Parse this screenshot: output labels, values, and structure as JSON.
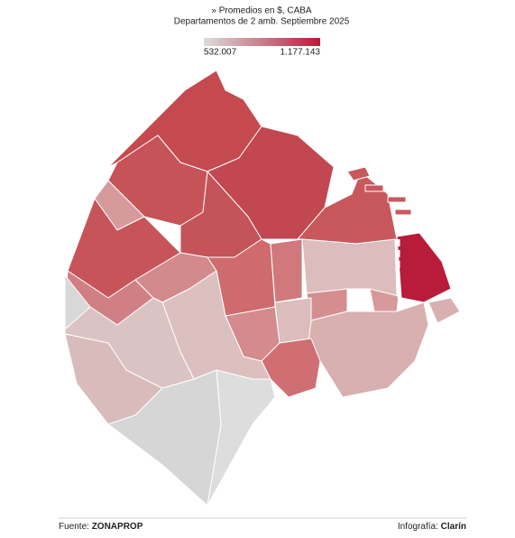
{
  "header": {
    "title": "» Promedios en $, CABA",
    "subtitle": "Departamentos de 2 amb. Septiembre 2025"
  },
  "legend": {
    "min": "532.007",
    "max": "1.177.143"
  },
  "footer": {
    "source_label": "Fuente:",
    "source": "ZONAPROP",
    "credit_label": "Infografía:",
    "credit": "Clarín"
  }
}
